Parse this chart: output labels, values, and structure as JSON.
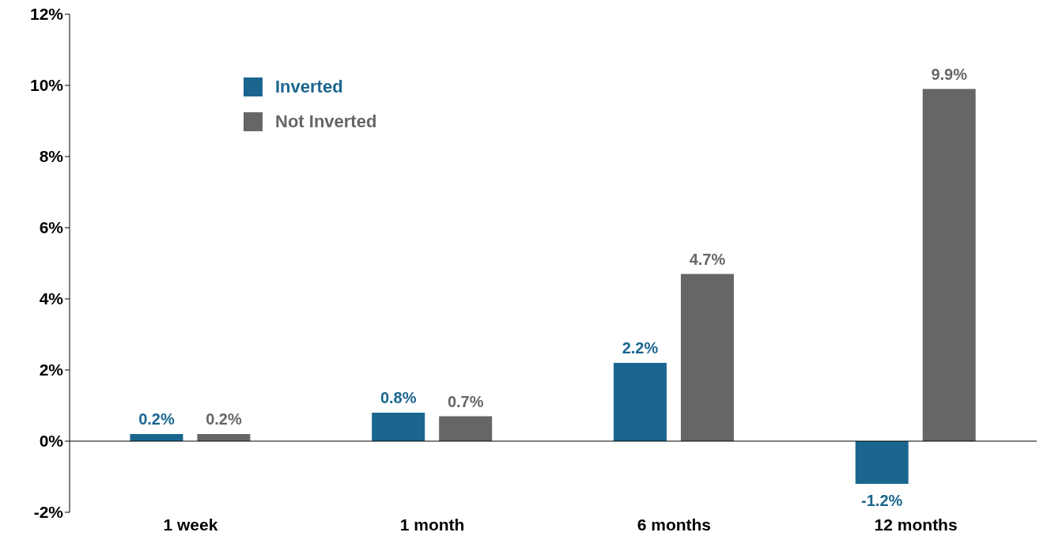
{
  "chart_data": {
    "type": "bar",
    "categories": [
      "1 week",
      "1 month",
      "6 months",
      "12 months"
    ],
    "series": [
      {
        "name": "Inverted",
        "color": "#1b6690",
        "values": [
          0.2,
          0.8,
          2.2,
          -1.2
        ],
        "value_labels": [
          "0.2%",
          "0.8%",
          "2.2%",
          "-1.2%"
        ]
      },
      {
        "name": "Not Inverted",
        "color": "#666666",
        "values": [
          0.2,
          0.7,
          4.7,
          9.9
        ],
        "value_labels": [
          "0.2%",
          "0.7%",
          "4.7%",
          "9.9%"
        ]
      }
    ],
    "ylim": [
      -2,
      12
    ],
    "yticks": [
      {
        "value": -2,
        "label": "-2%"
      },
      {
        "value": 0,
        "label": "0%"
      },
      {
        "value": 2,
        "label": "2%"
      },
      {
        "value": 4,
        "label": "4%"
      },
      {
        "value": 6,
        "label": "6%"
      },
      {
        "value": 8,
        "label": "8%"
      },
      {
        "value": 10,
        "label": "10%"
      },
      {
        "value": 12,
        "label": "12%"
      }
    ],
    "legend": "top left"
  }
}
